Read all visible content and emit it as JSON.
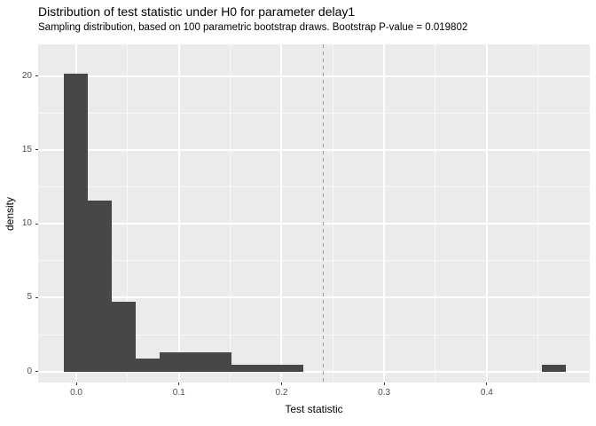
{
  "title": "Distribution of test statistic under H0 for parameter delay1",
  "subtitle": "Sampling distribution, based on 100 parametric bootstrap draws. Bootstrap P-value = 0.019802",
  "chart_data": {
    "type": "bar",
    "subtype": "histogram",
    "title": "Distribution of test statistic under H0 for parameter delay1",
    "subtitle": "Sampling distribution, based on 100 parametric bootstrap draws. Bootstrap P-value = 0.019802",
    "xlabel": "Test statistic",
    "ylabel": "density",
    "bootstrap_draws": 100,
    "p_value": 0.019802,
    "xlim": [
      -0.0372,
      0.5004
    ],
    "ylim": [
      -0.745,
      22.15
    ],
    "x_ticks": [
      0.0,
      0.1,
      0.2,
      0.3,
      0.4
    ],
    "x_tick_labels": [
      "0.0",
      "0.1",
      "0.2",
      "0.3",
      "0.4"
    ],
    "y_ticks": [
      0,
      5,
      10,
      15,
      20
    ],
    "y_tick_labels": [
      "0",
      "5",
      "10",
      "15",
      "20"
    ],
    "x_minor_gridlines": [
      0.05,
      0.15,
      0.25,
      0.35,
      0.45
    ],
    "y_minor_gridlines": [
      2.5,
      7.5,
      12.5,
      17.5
    ],
    "grid": "on",
    "legend": "none",
    "bin_width": 0.0233,
    "bins": [
      {
        "x0": -0.0121,
        "x1": 0.0112,
        "count": 47,
        "density": 20.17
      },
      {
        "x0": 0.0112,
        "x1": 0.0345,
        "count": 27,
        "density": 11.59
      },
      {
        "x0": 0.0345,
        "x1": 0.0578,
        "count": 11,
        "density": 4.72
      },
      {
        "x0": 0.0578,
        "x1": 0.0811,
        "count": 2,
        "density": 0.86
      },
      {
        "x0": 0.0811,
        "x1": 0.1044,
        "count": 3,
        "density": 1.29
      },
      {
        "x0": 0.1044,
        "x1": 0.1277,
        "count": 3,
        "density": 1.29
      },
      {
        "x0": 0.1277,
        "x1": 0.151,
        "count": 3,
        "density": 1.29
      },
      {
        "x0": 0.151,
        "x1": 0.1743,
        "count": 1,
        "density": 0.43
      },
      {
        "x0": 0.1743,
        "x1": 0.1976,
        "count": 1,
        "density": 0.43
      },
      {
        "x0": 0.1976,
        "x1": 0.2209,
        "count": 1,
        "density": 0.43
      },
      {
        "x0": 0.4539,
        "x1": 0.4772,
        "count": 1,
        "density": 0.43
      }
    ],
    "vline": {
      "x": 0.241,
      "style": "dashed"
    },
    "colors": {
      "bar_fill": "#474747",
      "panel_background": "#EBEBEB",
      "gridline": "#FFFFFF",
      "vline": "#999999",
      "axis_text": "#4D4D4D",
      "tick_mark": "#333333",
      "title_text": "#000000"
    }
  }
}
